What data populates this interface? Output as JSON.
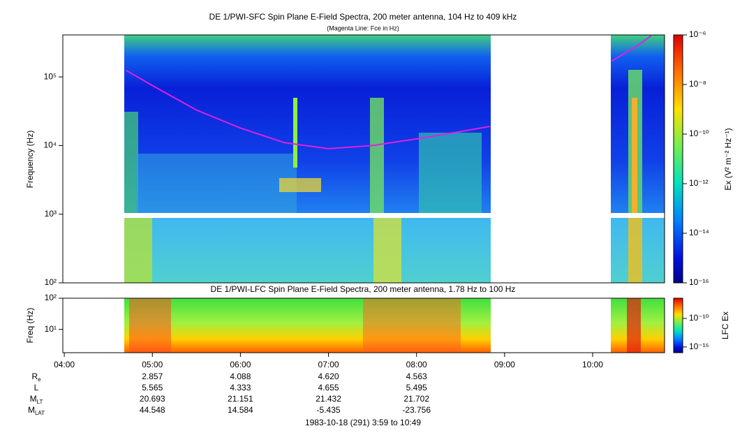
{
  "chart_data": [
    {
      "type": "spectrogram",
      "title": "DE 1/PWI-SFC  Spin Plane E-Field Spectra, 200 meter antenna, 104 Hz to 409 kHz",
      "subtitle": "(Magenta Line: Fce in Hz)",
      "y_label": "Frequency (Hz)",
      "y_scale": "log",
      "ylim": [
        100,
        409000
      ],
      "yticks": [
        {
          "value": 100,
          "label": "10²"
        },
        {
          "value": 1000,
          "label": "10³"
        },
        {
          "value": 10000,
          "label": "10⁴"
        },
        {
          "value": 100000,
          "label": "10⁵"
        }
      ],
      "xlim": [
        "03:59",
        "10:49"
      ],
      "series": [
        {
          "color": "#e020e0",
          "x": [
            "04:42",
            "05:00",
            "05:30",
            "06:00",
            "06:30",
            "07:00",
            "07:30",
            "08:00",
            "08:30",
            "08:50",
            "09:30",
            "10:13",
            "10:30",
            "10:40"
          ],
          "values": [
            125000,
            75000,
            33000,
            18000,
            11000,
            9000,
            10000,
            12500,
            16000,
            19000,
            null,
            170000,
            280000,
            400000
          ]
        }
      ],
      "colorbar": {
        "label": "Ex (V² m⁻² Hz⁻¹)",
        "scale": "log",
        "lim": [
          1e-16,
          1e-06
        ],
        "ticks": [
          {
            "value": 1e-06,
            "label": "10⁻⁶"
          },
          {
            "value": 1e-08,
            "label": "10⁻⁸"
          },
          {
            "value": 1e-10,
            "label": "10⁻¹⁰"
          },
          {
            "value": 1e-12,
            "label": "10⁻¹²"
          },
          {
            "value": 1e-14,
            "label": "10⁻¹⁴"
          },
          {
            "value": 1e-16,
            "label": "10⁻¹⁶"
          }
        ]
      }
    },
    {
      "type": "spectrogram",
      "title": "DE 1/PWI-LFC  Spin Plane E-Field Spectra, 200 meter antenna, 1.78 Hz to 100 Hz",
      "y_label": "Freq (Hz)",
      "y_scale": "log",
      "ylim": [
        1.78,
        100
      ],
      "yticks": [
        {
          "value": 10,
          "label": "10¹"
        },
        {
          "value": 100,
          "label": "10²"
        }
      ],
      "xlim": [
        "03:59",
        "10:49"
      ],
      "xticks": [
        "04:00",
        "05:00",
        "06:00",
        "07:00",
        "08:00",
        "09:00",
        "10:00"
      ],
      "colorbar": {
        "label": "LFC Ex",
        "scale": "log",
        "lim": [
          1e-16,
          3.5e-07
        ],
        "ticks": [
          {
            "value": 1e-10,
            "label": "10⁻¹⁰"
          },
          {
            "value": 1e-15,
            "label": "10⁻¹⁵"
          }
        ]
      }
    }
  ],
  "ephemeris": {
    "times": [
      "05:00",
      "06:00",
      "07:00",
      "08:00"
    ],
    "rows": [
      {
        "label": "R",
        "sub": "e",
        "values": [
          "2.857",
          "4.088",
          "4.620",
          "4.563"
        ]
      },
      {
        "label": "L",
        "values": [
          "5.565",
          "4.333",
          "4.655",
          "5.495"
        ]
      },
      {
        "label": "M",
        "sub": "LT",
        "values": [
          "20.693",
          "21.151",
          "21.432",
          "21.702"
        ]
      },
      {
        "label": "M",
        "sub": "LAT",
        "values": [
          "44.548",
          "14.584",
          "-5.435",
          "-23.756"
        ]
      }
    ]
  },
  "footer": "1983-10-18 (291) 3:59 to 10:49"
}
